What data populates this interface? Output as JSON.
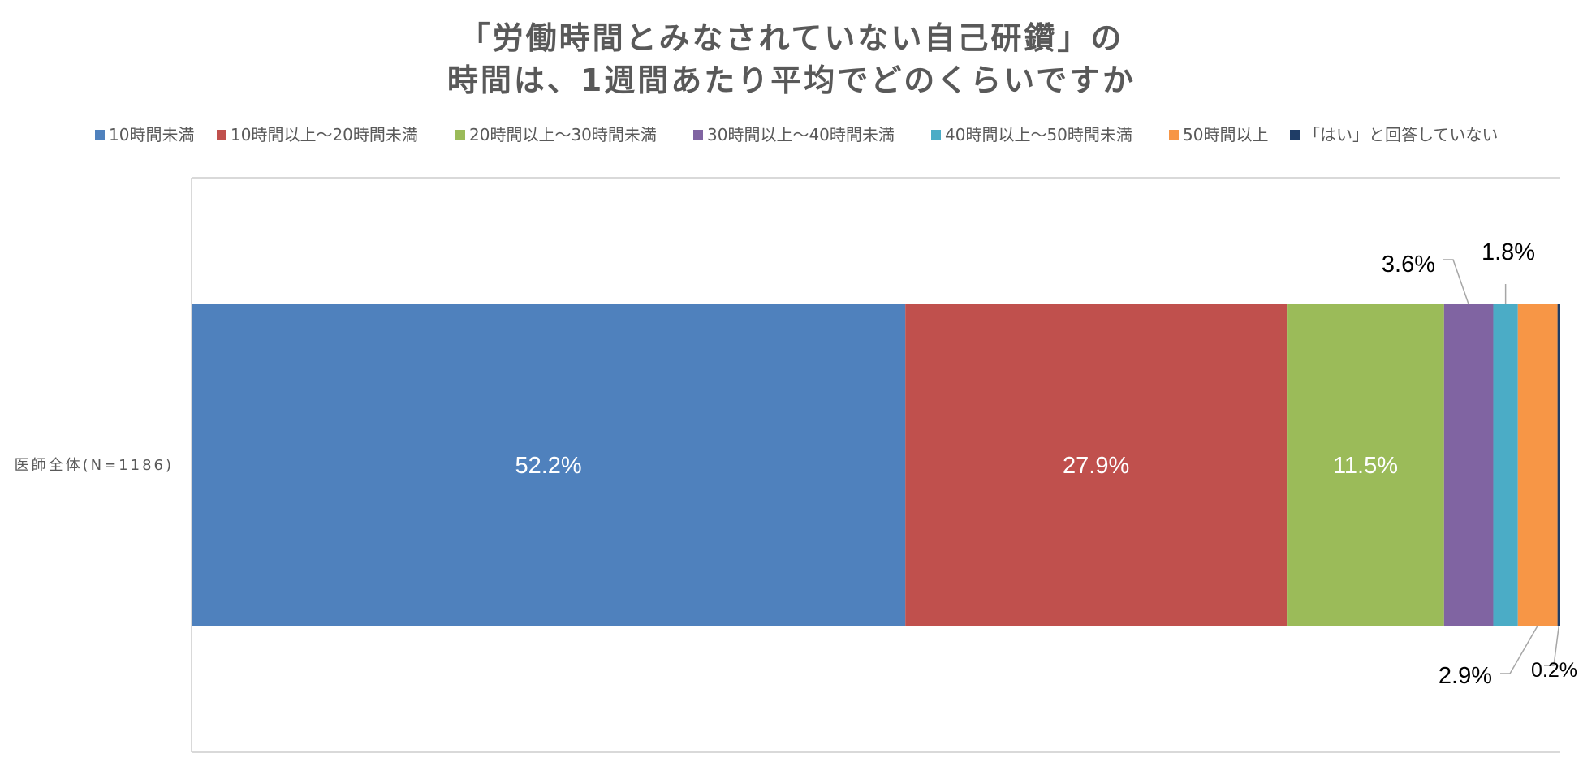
{
  "chart_data": {
    "type": "bar",
    "orientation": "horizontal",
    "stacked": "percent",
    "title_lines": [
      "「労働時間とみなされていない自己研鑽」の",
      "時間は、1週間あたり平均でどのくらいですか"
    ],
    "categories": [
      "医師全体(N=1186)"
    ],
    "series": [
      {
        "name": "10時間未満",
        "values": [
          52.2
        ],
        "label": "52.2%",
        "color": "#4f81bd"
      },
      {
        "name": "10時間以上～20時間未満",
        "values": [
          27.9
        ],
        "label": "27.9%",
        "color": "#c0504d"
      },
      {
        "name": "20時間以上～30時間未満",
        "values": [
          11.5
        ],
        "label": "11.5%",
        "color": "#9bbb59"
      },
      {
        "name": "30時間以上～40時間未満",
        "values": [
          3.6
        ],
        "label": "3.6%",
        "color": "#8064a2"
      },
      {
        "name": "40時間以上～50時間未満",
        "values": [
          1.8
        ],
        "label": "1.8%",
        "color": "#4bacc6"
      },
      {
        "name": "50時間以上",
        "values": [
          2.9
        ],
        "label": "2.9%",
        "color": "#f79646"
      },
      {
        "name": "「はい」と回答していない",
        "values": [
          0.2
        ],
        "label": "0.2%",
        "color": "#1f3d66"
      }
    ],
    "xlim": [
      0,
      100
    ],
    "legend_position": "top",
    "grid": false
  }
}
